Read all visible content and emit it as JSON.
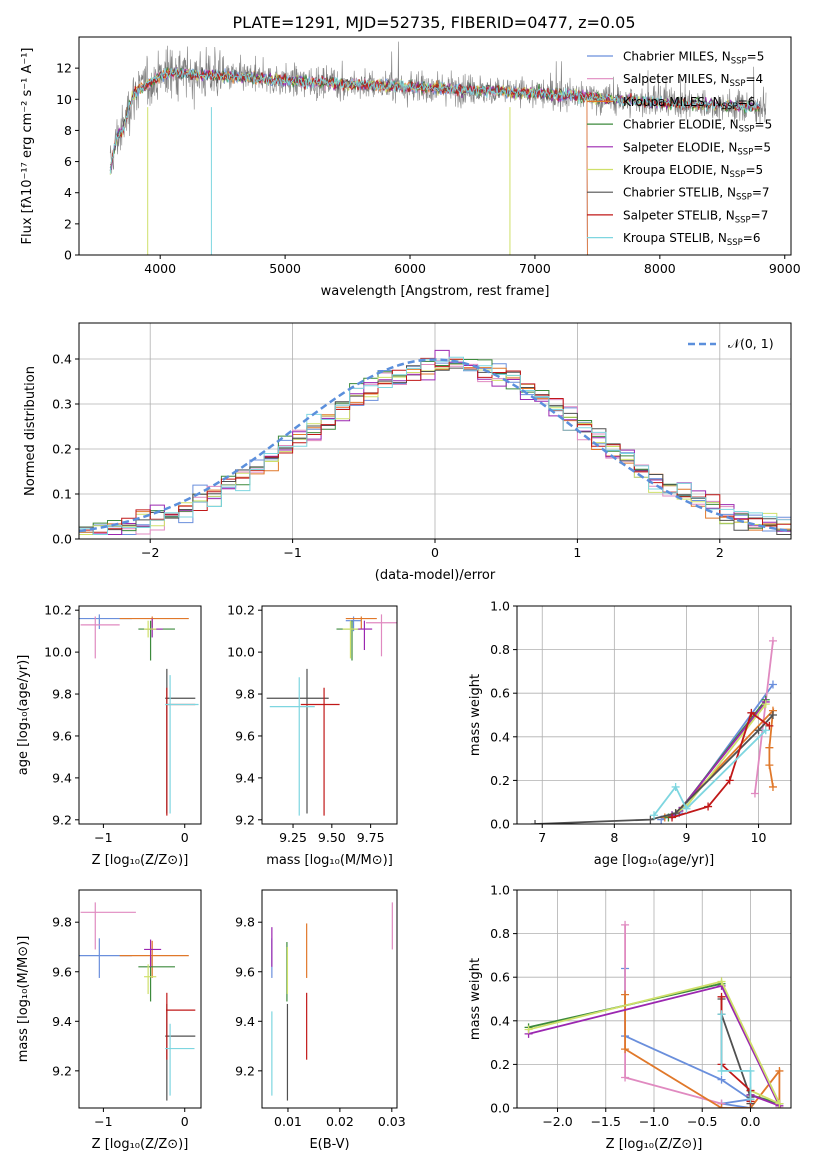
{
  "title": "PLATE=1291, MJD=52735, FIBERID=0477, z=0.05",
  "colors": {
    "Chabrier MILES": "#6a8fdc",
    "Salpeter MILES": "#e08ac0",
    "Kroupa MILES": "#e0782a",
    "Chabrier ELODIE": "#3c8a3c",
    "Salpeter ELODIE": "#9b27b0",
    "Kroupa ELODIE": "#cfe06a",
    "Chabrier STELIB": "#505050",
    "Salpeter STELIB": "#c01818",
    "Kroupa STELIB": "#7ed6e0",
    "data": "#808080",
    "normal": "#5b8fdc"
  },
  "chart_data": [
    {
      "id": "spectrum",
      "type": "line",
      "xlabel": "wavelength [Angstrom, rest frame]",
      "ylabel": "Flux [fλ10⁻¹⁷ erg cm⁻² s⁻¹ A⁻¹]",
      "xlim": [
        3350,
        9050
      ],
      "ylim": [
        0,
        14
      ],
      "xticks": [
        "4000",
        "5000",
        "6000",
        "7000",
        "8000",
        "9000"
      ],
      "yticks": [
        "0",
        "2",
        "4",
        "6",
        "8",
        "10",
        "12"
      ],
      "legend_position": "upper-right",
      "legend": [
        {
          "name": "Chabrier MILES",
          "n": "5"
        },
        {
          "name": "Salpeter MILES",
          "n": "4"
        },
        {
          "name": "Kroupa MILES",
          "n": "6"
        },
        {
          "name": "Chabrier ELODIE",
          "n": "5"
        },
        {
          "name": "Salpeter ELODIE",
          "n": "5"
        },
        {
          "name": "Kroupa ELODIE",
          "n": "5"
        },
        {
          "name": "Chabrier STELIB",
          "n": "7"
        },
        {
          "name": "Salpeter STELIB",
          "n": "7"
        },
        {
          "name": "Kroupa STELIB",
          "n": "6"
        }
      ],
      "data_envelope": {
        "wavelength": [
          3600,
          3650,
          3700,
          3750,
          3800,
          3900,
          4000,
          4100,
          4300,
          4500,
          4700,
          5000,
          5500,
          6000,
          6500,
          7000,
          7400,
          7600,
          8000,
          8500,
          8800
        ],
        "flux": [
          5.5,
          7.5,
          8.0,
          9.5,
          10.5,
          11.0,
          11.5,
          11.7,
          11.6,
          11.5,
          11.4,
          11.2,
          11.0,
          10.8,
          10.6,
          10.4,
          10.2,
          10.0,
          9.8,
          9.6,
          9.5
        ]
      }
    },
    {
      "id": "residuals",
      "type": "histogram",
      "xlabel": "(data-model)/error",
      "ylabel": "Normed distribution",
      "xlim": [
        -2.5,
        2.5
      ],
      "ylim": [
        0,
        0.48
      ],
      "xticks": [
        "−2",
        "−1",
        "0",
        "1",
        "2"
      ],
      "yticks": [
        "0.0",
        "0.1",
        "0.2",
        "0.3",
        "0.4"
      ],
      "legend": [
        "𝒩(0, 1)"
      ],
      "bin_width": 0.1,
      "grid": true
    },
    {
      "id": "age-vs-Z",
      "type": "errorbar",
      "xlabel": "Z [log₁₀(Z/Z⊙)]",
      "ylabel": "age  [log₁₀(age/yr)]",
      "xlim": [
        -1.3,
        0.2
      ],
      "ylim": [
        9.18,
        10.22
      ],
      "xticks": [
        "−1",
        "0"
      ],
      "yticks": [
        "9.2",
        "9.4",
        "9.6",
        "9.8",
        "10.0",
        "10.2"
      ],
      "points": [
        {
          "model": "Chabrier MILES",
          "x": -1.05,
          "y": 10.16,
          "xerr": [
            0.25,
            0.4
          ],
          "yerr": [
            0.05,
            0.02
          ]
        },
        {
          "model": "Salpeter MILES",
          "x": -1.1,
          "y": 10.13,
          "xerr": [
            0.18,
            0.3
          ],
          "yerr": [
            0.16,
            0.04
          ]
        },
        {
          "model": "Kroupa MILES",
          "x": -0.4,
          "y": 10.16,
          "xerr": [
            0.4,
            0.45
          ],
          "yerr": [
            0.04,
            0.01
          ]
        },
        {
          "model": "Chabrier ELODIE",
          "x": -0.42,
          "y": 10.11,
          "xerr": [
            0.15,
            0.3
          ],
          "yerr": [
            0.15,
            0.04
          ]
        },
        {
          "model": "Salpeter ELODIE",
          "x": -0.4,
          "y": 10.11,
          "xerr": [
            0.08,
            0.13
          ],
          "yerr": [
            0.04,
            0.05
          ]
        },
        {
          "model": "Kroupa ELODIE",
          "x": -0.45,
          "y": 10.11,
          "xerr": [
            0.05,
            0.1
          ],
          "yerr": [
            0.04,
            0.04
          ]
        },
        {
          "model": "Chabrier STELIB",
          "x": -0.22,
          "y": 9.78,
          "xerr": [
            0.02,
            0.35
          ],
          "yerr": [
            0.55,
            0.14
          ]
        },
        {
          "model": "Salpeter STELIB",
          "x": -0.22,
          "y": 9.75,
          "xerr": [
            0.01,
            0.35
          ],
          "yerr": [
            0.53,
            0.08
          ]
        },
        {
          "model": "Kroupa STELIB",
          "x": -0.18,
          "y": 9.75,
          "xerr": [
            0.06,
            0.35
          ],
          "yerr": [
            0.52,
            0.14
          ]
        }
      ]
    },
    {
      "id": "age-vs-mass",
      "type": "errorbar",
      "xlabel": "mass [log₁₀(M/M⊙)]",
      "ylabel": "",
      "xlim": [
        9.05,
        9.92
      ],
      "ylim": [
        9.18,
        10.22
      ],
      "xticks": [
        "9.25",
        "9.50",
        "9.75"
      ],
      "yticks": [
        "9.2",
        "9.4",
        "9.6",
        "9.8",
        "10.0",
        "10.2"
      ],
      "points": [
        {
          "model": "Chabrier MILES",
          "x": 9.64,
          "y": 10.15,
          "xerr": [
            0.05,
            0.05
          ],
          "yerr": [
            0.05,
            0.02
          ]
        },
        {
          "model": "Salpeter MILES",
          "x": 9.82,
          "y": 10.14,
          "xerr": [
            0.1,
            0.1
          ],
          "yerr": [
            0.16,
            0.04
          ]
        },
        {
          "model": "Kroupa MILES",
          "x": 9.69,
          "y": 10.16,
          "xerr": [
            0.1,
            0.1
          ],
          "yerr": [
            0.05,
            0.01
          ]
        },
        {
          "model": "Chabrier ELODIE",
          "x": 9.63,
          "y": 10.11,
          "xerr": [
            0.1,
            0.05
          ],
          "yerr": [
            0.15,
            0.04
          ]
        },
        {
          "model": "Salpeter ELODIE",
          "x": 9.71,
          "y": 10.11,
          "xerr": [
            0.05,
            0.05
          ],
          "yerr": [
            0.1,
            0.04
          ]
        },
        {
          "model": "Kroupa ELODIE",
          "x": 9.62,
          "y": 10.11,
          "xerr": [
            0.05,
            0.05
          ],
          "yerr": [
            0.14,
            0.04
          ]
        },
        {
          "model": "Chabrier STELIB",
          "x": 9.34,
          "y": 9.78,
          "xerr": [
            0.26,
            0.14
          ],
          "yerr": [
            0.55,
            0.14
          ]
        },
        {
          "model": "Salpeter STELIB",
          "x": 9.45,
          "y": 9.75,
          "xerr": [
            0.15,
            0.1
          ],
          "yerr": [
            0.53,
            0.08
          ]
        },
        {
          "model": "Kroupa STELIB",
          "x": 9.29,
          "y": 9.74,
          "xerr": [
            0.19,
            0.1
          ],
          "yerr": [
            0.52,
            0.14
          ]
        }
      ]
    },
    {
      "id": "massweight-vs-age",
      "type": "line",
      "xlabel": "age  [log₁₀(age/yr)]",
      "ylabel": "mass weight",
      "xlim": [
        6.65,
        10.45
      ],
      "ylim": [
        0,
        1
      ],
      "xticks": [
        "7",
        "8",
        "9",
        "10"
      ],
      "yticks": [
        "0.0",
        "0.2",
        "0.4",
        "0.6",
        "0.8",
        "1.0"
      ],
      "series": [
        {
          "model": "Chabrier MILES",
          "x": [
            8.65,
            8.8,
            8.9,
            10.2
          ],
          "y": [
            0.02,
            0.04,
            0.05,
            0.64
          ]
        },
        {
          "model": "Salpeter MILES",
          "x": [
            9.95,
            10.2
          ],
          "y": [
            0.14,
            0.84
          ]
        },
        {
          "model": "Kroupa MILES",
          "x": [
            8.7,
            8.85,
            10.2,
            10.15,
            10.15,
            10.2
          ],
          "y": [
            0.03,
            0.05,
            0.52,
            0.35,
            0.27,
            0.17
          ]
        },
        {
          "model": "Chabrier ELODIE",
          "x": [
            8.75,
            8.9,
            10.1
          ],
          "y": [
            0.03,
            0.06,
            0.57
          ]
        },
        {
          "model": "Salpeter ELODIE",
          "x": [
            8.8,
            8.9,
            10.1
          ],
          "y": [
            0.04,
            0.06,
            0.56
          ]
        },
        {
          "model": "Kroupa ELODIE",
          "x": [
            8.85,
            9.0,
            10.1
          ],
          "y": [
            0.05,
            0.08,
            0.55
          ]
        },
        {
          "model": "Chabrier STELIB",
          "x": [
            6.9,
            8.5,
            8.85,
            10.0,
            10.2
          ],
          "y": [
            0.0,
            0.02,
            0.05,
            0.43,
            0.5
          ]
        },
        {
          "model": "Salpeter STELIB",
          "x": [
            8.8,
            9.3,
            9.6,
            9.9,
            10.15
          ],
          "y": [
            0.03,
            0.08,
            0.2,
            0.51,
            0.45
          ]
        },
        {
          "model": "Kroupa STELIB",
          "x": [
            8.55,
            8.85,
            9.0,
            10.1
          ],
          "y": [
            0.04,
            0.17,
            0.07,
            0.43
          ]
        }
      ]
    },
    {
      "id": "mass-vs-Z",
      "type": "errorbar",
      "xlabel": "Z [log₁₀(Z/Z⊙)]",
      "ylabel": "mass [log₁₀(M/M⊙)]",
      "xlim": [
        -1.3,
        0.2
      ],
      "ylim": [
        9.05,
        9.93
      ],
      "xticks": [
        "−1",
        "0"
      ],
      "yticks": [
        "9.2",
        "9.4",
        "9.6",
        "9.8"
      ],
      "points": [
        {
          "model": "Chabrier MILES",
          "x": -1.05,
          "y": 9.665,
          "xerr": [
            0.25,
            0.4
          ],
          "yerr": [
            0.09,
            0.07
          ]
        },
        {
          "model": "Salpeter MILES",
          "x": -1.1,
          "y": 9.84,
          "xerr": [
            0.18,
            0.5
          ],
          "yerr": [
            0.15,
            0.04
          ]
        },
        {
          "model": "Kroupa MILES",
          "x": -0.4,
          "y": 9.665,
          "xerr": [
            0.4,
            0.45
          ],
          "yerr": [
            0.09,
            0.06
          ]
        },
        {
          "model": "Chabrier ELODIE",
          "x": -0.42,
          "y": 9.62,
          "xerr": [
            0.15,
            0.3
          ],
          "yerr": [
            0.14,
            0.04
          ]
        },
        {
          "model": "Salpeter ELODIE",
          "x": -0.42,
          "y": 9.69,
          "xerr": [
            0.08,
            0.13
          ],
          "yerr": [
            0.07,
            0.04
          ]
        },
        {
          "model": "Kroupa ELODIE",
          "x": -0.45,
          "y": 9.58,
          "xerr": [
            0.05,
            0.1
          ],
          "yerr": [
            0.07,
            0.05
          ]
        },
        {
          "model": "Chabrier STELIB",
          "x": -0.22,
          "y": 9.34,
          "xerr": [
            0.02,
            0.35
          ],
          "yerr": [
            0.26,
            0.13
          ]
        },
        {
          "model": "Salpeter STELIB",
          "x": -0.22,
          "y": 9.445,
          "xerr": [
            0.01,
            0.35
          ],
          "yerr": [
            0.2,
            0.07
          ]
        },
        {
          "model": "Kroupa STELIB",
          "x": -0.18,
          "y": 9.29,
          "xerr": [
            0.06,
            0.3
          ],
          "yerr": [
            0.19,
            0.1
          ]
        }
      ]
    },
    {
      "id": "mass-vs-EBV",
      "type": "errorbar",
      "xlabel": "E(B-V)",
      "ylabel": "",
      "xlim": [
        0.005,
        0.031
      ],
      "ylim": [
        9.05,
        9.93
      ],
      "xticks": [
        "0.01",
        "0.02",
        "0.03"
      ],
      "yticks": [
        "9.2",
        "9.4",
        "9.6",
        "9.8"
      ],
      "points": [
        {
          "model": "Chabrier MILES",
          "x": 0.0069,
          "y": 9.665,
          "xerr": [
            0,
            0
          ],
          "yerr": [
            0.09,
            0.07
          ]
        },
        {
          "model": "Salpeter MILES",
          "x": 0.0301,
          "y": 9.84,
          "xerr": [
            0,
            0
          ],
          "yerr": [
            0.15,
            0.04
          ]
        },
        {
          "model": "Kroupa MILES",
          "x": 0.0136,
          "y": 9.665,
          "xerr": [
            0,
            0
          ],
          "yerr": [
            0.09,
            0.13
          ]
        },
        {
          "model": "Chabrier ELODIE",
          "x": 0.0098,
          "y": 9.62,
          "xerr": [
            0,
            0
          ],
          "yerr": [
            0.14,
            0.1
          ]
        },
        {
          "model": "Salpeter ELODIE",
          "x": 0.0069,
          "y": 9.69,
          "xerr": [
            0,
            0
          ],
          "yerr": [
            0.07,
            0.09
          ]
        },
        {
          "model": "Kroupa ELODIE",
          "x": 0.0099,
          "y": 9.58,
          "xerr": [
            0,
            0
          ],
          "yerr": [
            0.07,
            0.12
          ]
        },
        {
          "model": "Chabrier STELIB",
          "x": 0.0099,
          "y": 9.34,
          "xerr": [
            0,
            0
          ],
          "yerr": [
            0.26,
            0.13
          ]
        },
        {
          "model": "Salpeter STELIB",
          "x": 0.0136,
          "y": 9.445,
          "xerr": [
            0,
            0
          ],
          "yerr": [
            0.2,
            0.07
          ]
        },
        {
          "model": "Kroupa STELIB",
          "x": 0.0069,
          "y": 9.29,
          "xerr": [
            0,
            0
          ],
          "yerr": [
            0.19,
            0.15
          ]
        }
      ]
    },
    {
      "id": "massweight-vs-Z",
      "type": "line",
      "xlabel": "Z [log₁₀(Z/Z⊙)]",
      "ylabel": "mass weight",
      "xlim": [
        -2.42,
        0.42
      ],
      "ylim": [
        0,
        1
      ],
      "xticks": [
        "−2.0",
        "−1.5",
        "−1.0",
        "−0.5",
        "0.0"
      ],
      "yticks": [
        "0.0",
        "0.2",
        "0.4",
        "0.6",
        "0.8",
        "1.0"
      ],
      "series": [
        {
          "model": "Chabrier MILES",
          "x": [
            -1.3,
            -1.3,
            -0.3,
            0.0,
            -0.3,
            0.0
          ],
          "y": [
            0.64,
            0.33,
            0.13,
            0.04,
            0.02,
            0.0
          ]
        },
        {
          "model": "Salpeter MILES",
          "x": [
            -1.3,
            -1.3,
            -0.3
          ],
          "y": [
            0.84,
            0.14,
            0.02
          ]
        },
        {
          "model": "Kroupa MILES",
          "x": [
            -1.3,
            -1.3,
            -0.3,
            0.0,
            0.3,
            0.3
          ],
          "y": [
            0.52,
            0.27,
            0.0,
            0.0,
            0.17,
            0.0
          ]
        },
        {
          "model": "Chabrier ELODIE",
          "x": [
            -2.3,
            -0.3,
            0.3,
            0.0
          ],
          "y": [
            0.37,
            0.57,
            0.02,
            0.06
          ]
        },
        {
          "model": "Salpeter ELODIE",
          "x": [
            -2.3,
            -0.3,
            0.3,
            0.0
          ],
          "y": [
            0.34,
            0.56,
            0.01,
            0.06
          ]
        },
        {
          "model": "Kroupa ELODIE",
          "x": [
            -2.3,
            -0.3,
            0.3,
            0.0
          ],
          "y": [
            0.36,
            0.58,
            0.02,
            0.08
          ]
        },
        {
          "model": "Chabrier STELIB",
          "x": [
            -0.3,
            -0.3,
            0.0,
            0.0
          ],
          "y": [
            0.5,
            0.43,
            0.05,
            0.02
          ]
        },
        {
          "model": "Salpeter STELIB",
          "x": [
            -0.3,
            -0.3,
            0.0,
            0.0
          ],
          "y": [
            0.51,
            0.2,
            0.08,
            0.03
          ]
        },
        {
          "model": "Kroupa STELIB",
          "x": [
            -0.3,
            -0.3,
            0.0,
            0.0
          ],
          "y": [
            0.43,
            0.17,
            0.17,
            0.04
          ]
        }
      ]
    }
  ]
}
